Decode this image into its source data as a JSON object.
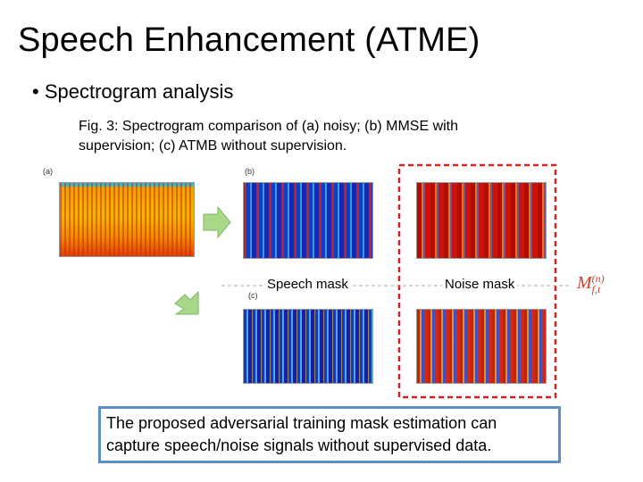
{
  "title": "Speech Enhancement (ATME)",
  "bullet": "Spectrogram analysis",
  "figure": {
    "caption": "Fig. 3: Spectrogram comparison of (a) noisy; (b) MMSE with supervision; (c) ATMB without supervision.",
    "panels": [
      {
        "label": "(a)"
      },
      {
        "label": "(b)"
      },
      {
        "label": "(c)"
      }
    ],
    "mask_labels": [
      "Speech mask",
      "Noise mask"
    ],
    "symbol": {
      "base": "M",
      "sup": "(n)",
      "sub": "f,t"
    }
  },
  "callout": "The proposed adversarial training mask estimation can capture speech/noise signals without supervised data."
}
